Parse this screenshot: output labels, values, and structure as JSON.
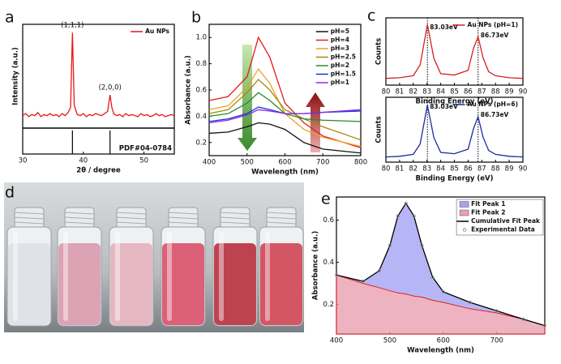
{
  "photo": {
    "label": "d"
  },
  "chart_data": [
    {
      "type": "line",
      "label": "a",
      "x_label": "2θ / degree",
      "y_label": "Intensity (a.u.)",
      "xlim": [
        30,
        55
      ],
      "xticks": [
        30,
        40,
        50
      ],
      "ylim": [
        0,
        100
      ],
      "legend": "upper right",
      "x": [
        30,
        30.5,
        31,
        31.5,
        32,
        32.5,
        33,
        33.5,
        34,
        34.5,
        35,
        35.5,
        36,
        36.5,
        37,
        37.5,
        37.9,
        38.2,
        38.5,
        39,
        39.5,
        40,
        40.5,
        41,
        41.5,
        42,
        42.5,
        43,
        43.5,
        44,
        44.2,
        44.4,
        44.7,
        45,
        45.5,
        46,
        46.5,
        47,
        47.5,
        48,
        48.5,
        49,
        49.5,
        50,
        50.5,
        51,
        51.5,
        52,
        52.5,
        53,
        53.5,
        54,
        54.5,
        55
      ],
      "series": [
        {
          "name": "Au NPs",
          "color": "#e8161b",
          "values": [
            12,
            14,
            11,
            13,
            12,
            15,
            11,
            13,
            12,
            14,
            12,
            13,
            11,
            14,
            12,
            15,
            20,
            92,
            22,
            13,
            12,
            14,
            11,
            13,
            12,
            14,
            13,
            12,
            14,
            16,
            24,
            32,
            20,
            14,
            12,
            13,
            11,
            14,
            12,
            13,
            12,
            11,
            14,
            12,
            13,
            11,
            12,
            14,
            12,
            13,
            11,
            12,
            13,
            12
          ]
        }
      ],
      "annotations": [
        "(1,1,1)",
        "(2,0,0)"
      ],
      "reference_lines": [
        38.2,
        44.4
      ],
      "reference_label": "PDF#04-0784"
    },
    {
      "type": "line",
      "label": "b",
      "x_label": "Wavelength (nm)",
      "y_label": "Absorbance (a.u.)",
      "xlim": [
        400,
        800
      ],
      "xticks": [
        400,
        500,
        600,
        700,
        800
      ],
      "ylim": [
        0.1,
        1.1
      ],
      "yticks": [
        0.2,
        0.4,
        0.6,
        0.8,
        {
          "value": 1,
          "label": "1.0"
        }
      ],
      "legend": "upper right",
      "x": [
        400,
        450,
        500,
        530,
        560,
        600,
        650,
        700,
        800
      ],
      "series": [
        {
          "name": "pH=5",
          "color": "#111111",
          "values": [
            0.27,
            0.28,
            0.32,
            0.35,
            0.34,
            0.3,
            0.2,
            0.15,
            0.12
          ]
        },
        {
          "name": "pH=4",
          "color": "#e41a1c",
          "values": [
            0.52,
            0.55,
            0.7,
            1.0,
            0.85,
            0.5,
            0.35,
            0.25,
            0.16
          ]
        },
        {
          "name": "pH=3",
          "color": "#f0a020",
          "values": [
            0.45,
            0.48,
            0.62,
            0.76,
            0.65,
            0.42,
            0.3,
            0.24,
            0.17
          ]
        },
        {
          "name": "pH=2.5",
          "color": "#a08a10",
          "values": [
            0.42,
            0.45,
            0.58,
            0.68,
            0.6,
            0.45,
            0.38,
            0.32,
            0.22
          ]
        },
        {
          "name": "pH=2",
          "color": "#2a8a2a",
          "values": [
            0.4,
            0.42,
            0.5,
            0.58,
            0.52,
            0.42,
            0.38,
            0.37,
            0.36
          ]
        },
        {
          "name": "pH=1.5",
          "color": "#2030d0",
          "values": [
            0.36,
            0.38,
            0.42,
            0.47,
            0.45,
            0.42,
            0.42,
            0.43,
            0.44
          ]
        },
        {
          "name": "pH=1",
          "color": "#8a2be2",
          "values": [
            0.35,
            0.37,
            0.41,
            0.45,
            0.44,
            0.42,
            0.42,
            0.43,
            0.45
          ]
        }
      ]
    },
    {
      "type": "line",
      "label": "c",
      "x_label": "Binding Energy (eV)",
      "y_label": "Counts",
      "xlim": [
        80,
        90
      ],
      "xticks": [
        80,
        81,
        82,
        83,
        84,
        85,
        86,
        87,
        88,
        89,
        90
      ],
      "ylim": [
        0,
        100
      ],
      "legend": "upper right",
      "x": [
        80,
        81,
        82,
        82.5,
        83.03,
        83.5,
        84,
        85,
        86,
        86.4,
        86.73,
        87.1,
        87.5,
        88,
        89,
        90
      ],
      "series": [
        {
          "name": "Au NPs (pH=1)",
          "color": "#d42020",
          "values": [
            10,
            11,
            14,
            30,
            90,
            40,
            17,
            15,
            22,
            55,
            72,
            40,
            20,
            14,
            11,
            10
          ]
        }
      ],
      "peak_positions": [
        83.03,
        86.73
      ],
      "peak_labels": [
        "83.03eV",
        "86.73eV"
      ]
    },
    {
      "type": "line",
      "x_label": "Binding Energy (eV)",
      "y_label": "Counts",
      "xlim": [
        80,
        90
      ],
      "xticks": [
        80,
        81,
        82,
        83,
        84,
        85,
        86,
        87,
        88,
        89,
        90
      ],
      "ylim": [
        0,
        100
      ],
      "legend": "upper right",
      "x": [
        80,
        81,
        82,
        82.5,
        83.03,
        83.5,
        84,
        85,
        86,
        86.4,
        86.73,
        87.1,
        87.5,
        88,
        89,
        90
      ],
      "series": [
        {
          "name": "Au NPs (pH=6)",
          "color": "#1a2aa0",
          "values": [
            8,
            9,
            12,
            28,
            88,
            38,
            15,
            13,
            20,
            52,
            70,
            38,
            18,
            12,
            9,
            8
          ]
        }
      ],
      "peak_positions": [
        83.03,
        86.73
      ],
      "peak_labels": [
        "83.03eV",
        "86.73eV"
      ]
    },
    {
      "type": "line",
      "label": "e",
      "x_label": "Wavelength (nm)",
      "y_label": "Absorbance (a.u.)",
      "xlim": [
        400,
        790
      ],
      "xticks": [
        400,
        500,
        600,
        700
      ],
      "ylim": [
        0.06,
        0.71
      ],
      "yticks": [
        0.2,
        0.4,
        0.6
      ],
      "legend": "upper right",
      "legend_frame": true,
      "x": [
        400,
        450,
        480,
        500,
        515,
        530,
        545,
        560,
        580,
        600,
        650,
        700,
        750,
        790
      ],
      "series": [
        {
          "name": "Fit Peak 1",
          "style": "area",
          "stacked": true,
          "color": "#a4a4f4",
          "values": [
            0,
            0.01,
            0.08,
            0.215,
            0.365,
            0.43,
            0.38,
            0.245,
            0.11,
            0.05,
            0.03,
            0.01,
            0,
            0
          ]
        },
        {
          "name": "Fit Peak 2",
          "style": "area",
          "color": "#e8a0b0",
          "values": [
            0.34,
            0.3,
            0.28,
            0.265,
            0.255,
            0.25,
            0.24,
            0.235,
            0.22,
            0.21,
            0.18,
            0.16,
            0.13,
            0.1
          ]
        },
        {
          "name": "Cumulative Fit Peak",
          "style": "line",
          "color": "#000000",
          "values": [
            0.34,
            0.31,
            0.36,
            0.48,
            0.62,
            0.68,
            0.62,
            0.48,
            0.33,
            0.26,
            0.21,
            0.17,
            0.13,
            0.1
          ]
        },
        {
          "name": "Experimental Data",
          "style": "scatter",
          "color": "#8a9aa0",
          "values": [
            0.34,
            0.31,
            0.36,
            0.48,
            0.62,
            0.68,
            0.62,
            0.48,
            0.33,
            0.26,
            0.21,
            0.17,
            0.13,
            0.1
          ]
        }
      ]
    }
  ]
}
